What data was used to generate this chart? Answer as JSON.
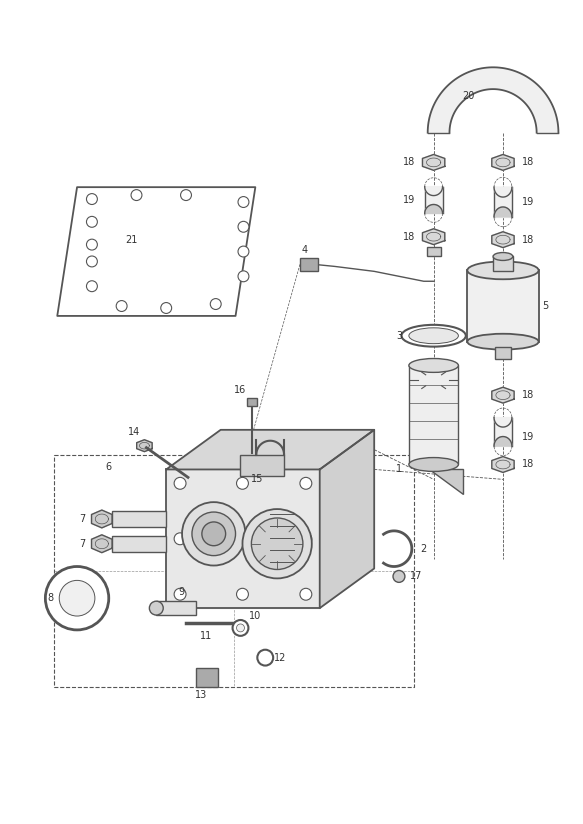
{
  "bg_color": "#ffffff",
  "line_color": "#555555",
  "label_color": "#333333",
  "figsize": [
    5.83,
    8.24
  ],
  "dpi": 100,
  "lw": 1.0,
  "fs": 7.0
}
